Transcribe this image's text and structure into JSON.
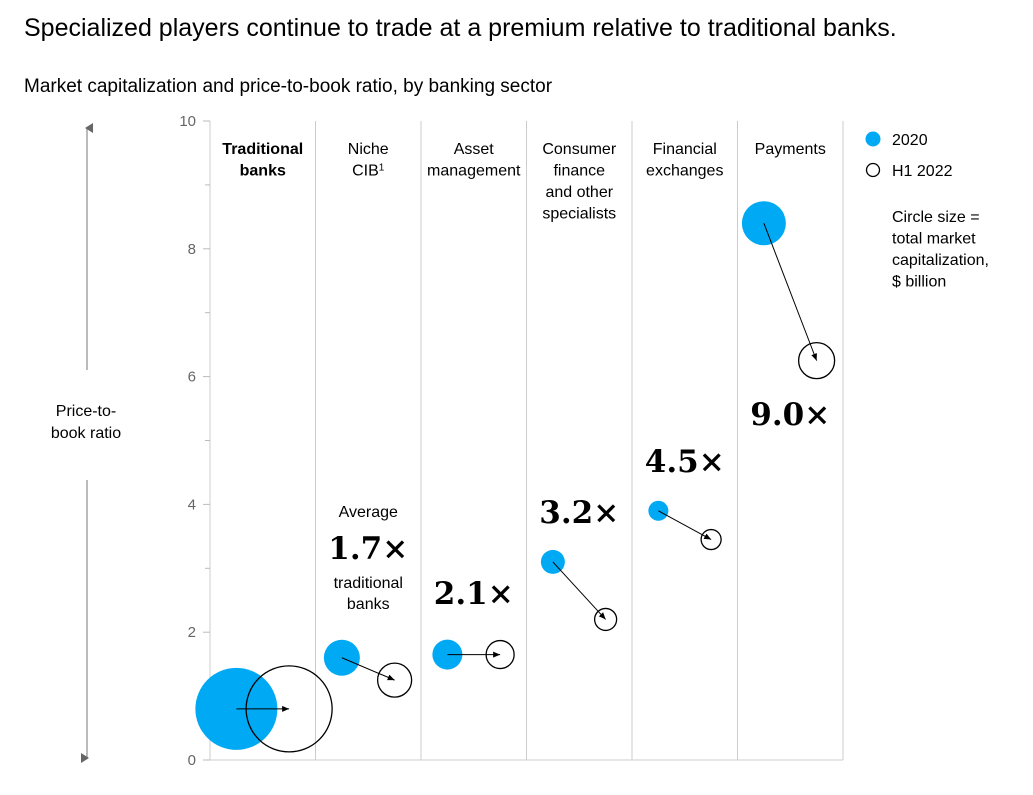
{
  "title": "Specialized players continue to trade at a premium relative to traditional banks.",
  "subtitle": "Market capitalization and price-to-book ratio, by banking sector",
  "colors": {
    "fill2020": "#00A9F4",
    "stroke": "#000000",
    "grid": "#cccccc"
  },
  "chart_data": {
    "type": "scatter",
    "title": "Market capitalization and price-to-book ratio, by banking sector",
    "ylabel": "Price-to-book ratio",
    "ylabel_lines": [
      "Price-to-",
      "book ratio"
    ],
    "ylim": [
      0,
      10
    ],
    "yticks": [
      "0",
      "2",
      "4",
      "6",
      "8",
      "10"
    ],
    "series": [
      {
        "name": "2020",
        "style": "filled"
      },
      {
        "name": "H1 2022",
        "style": "outline"
      }
    ],
    "sectors": [
      {
        "label_lines": [
          "Traditional",
          "banks"
        ],
        "bold": true,
        "pb_2020": 0.8,
        "pb_h1_2022": 0.8,
        "size_2020": 41,
        "size_h1_2022": 43,
        "multiple": ""
      },
      {
        "label_lines": [
          "Niche",
          "CIB"
        ],
        "sup": "1",
        "bold": false,
        "pb_2020": 1.6,
        "pb_h1_2022": 1.25,
        "size_2020": 18,
        "size_h1_2022": 17,
        "multiple": ""
      },
      {
        "label_lines": [
          "Asset",
          "management"
        ],
        "bold": false,
        "pb_2020": 1.65,
        "pb_h1_2022": 1.65,
        "size_2020": 15,
        "size_h1_2022": 14,
        "multiple": "2.1×"
      },
      {
        "label_lines": [
          "Consumer",
          "finance",
          "and other",
          "specialists"
        ],
        "bold": false,
        "pb_2020": 3.1,
        "pb_h1_2022": 2.2,
        "size_2020": 12,
        "size_h1_2022": 11,
        "multiple": "3.2×"
      },
      {
        "label_lines": [
          "Financial",
          "exchanges"
        ],
        "bold": false,
        "pb_2020": 3.9,
        "pb_h1_2022": 3.45,
        "size_2020": 10,
        "size_h1_2022": 10,
        "multiple": "4.5×"
      },
      {
        "label_lines": [
          "Payments"
        ],
        "bold": false,
        "pb_2020": 8.4,
        "pb_h1_2022": 6.25,
        "size_2020": 22,
        "size_h1_2022": 18,
        "multiple": "9.0×"
      }
    ],
    "average_annotation": {
      "top": "Average",
      "value": "1.7×",
      "bottom_lines": [
        "traditional",
        "banks"
      ]
    },
    "legend": {
      "entry_2020": "2020",
      "entry_h1_2022": "H1 2022",
      "size_note_lines": [
        "Circle size =",
        "total market",
        "capitalization,",
        "$ billion"
      ]
    }
  }
}
